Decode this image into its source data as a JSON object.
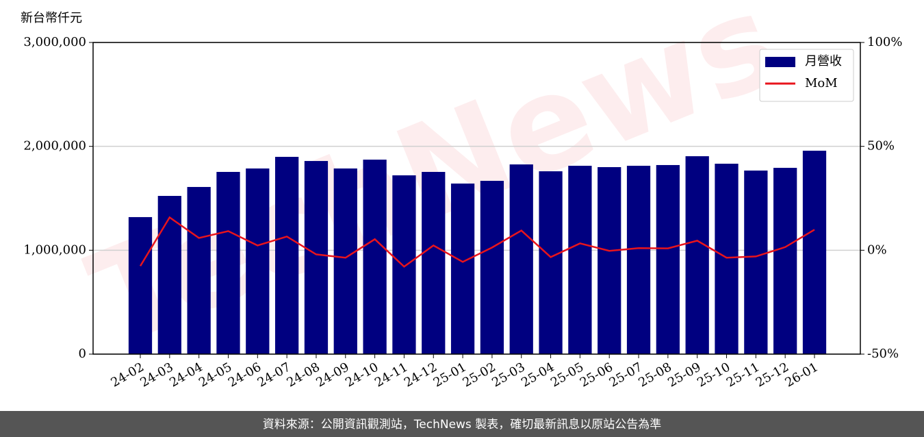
{
  "chart_data": {
    "type": "bar_line",
    "y_axis_label": "新台幣仟元",
    "watermark": "TechNews",
    "footer": "資料來源：公開資訊觀測站，TechNews 製表，確切最新訊息以原站公告為準",
    "categories": [
      "24-02",
      "24-03",
      "24-04",
      "24-05",
      "24-06",
      "24-07",
      "24-08",
      "24-09",
      "24-10",
      "24-11",
      "24-12",
      "25-01",
      "25-02",
      "25-03",
      "25-04",
      "25-05",
      "25-06",
      "25-07",
      "25-08",
      "25-09",
      "25-10",
      "25-11",
      "25-12",
      "26-01"
    ],
    "series": [
      {
        "name": "月營收",
        "type": "bar",
        "color": "#000080",
        "values": [
          1319000,
          1523000,
          1609000,
          1754000,
          1787000,
          1899000,
          1859000,
          1787000,
          1872000,
          1721000,
          1754000,
          1642000,
          1668000,
          1826000,
          1760000,
          1813000,
          1800000,
          1813000,
          1820000,
          1905000,
          1833000,
          1767000,
          1793000,
          1958000
        ]
      },
      {
        "name": "MoM",
        "type": "line",
        "axis": "y2",
        "color": "#e8141c",
        "values": [
          -7.6,
          15.8,
          5.9,
          9.2,
          2.3,
          6.6,
          -2.0,
          -3.6,
          5.3,
          -7.9,
          2.3,
          -5.6,
          1.3,
          9.5,
          -3.3,
          3.3,
          -0.3,
          1.0,
          0.9,
          4.6,
          -3.6,
          -3.0,
          1.5,
          9.9
        ]
      }
    ],
    "ylim": [
      0,
      3000000
    ],
    "yticks": [
      0,
      {
        "value": 1000000,
        "label": "1,000,000"
      },
      {
        "value": 2000000,
        "label": "2,000,000"
      },
      {
        "value": 3000000,
        "label": "3,000,000"
      }
    ],
    "y2lim": [
      -50,
      100
    ],
    "y2ticks": [
      {
        "value": -50,
        "label": "-50%"
      },
      {
        "value": 0,
        "label": "0%"
      },
      {
        "value": 50,
        "label": "50%"
      },
      {
        "value": 100,
        "label": "100%"
      }
    ],
    "grid": true,
    "legend": "upper right"
  }
}
